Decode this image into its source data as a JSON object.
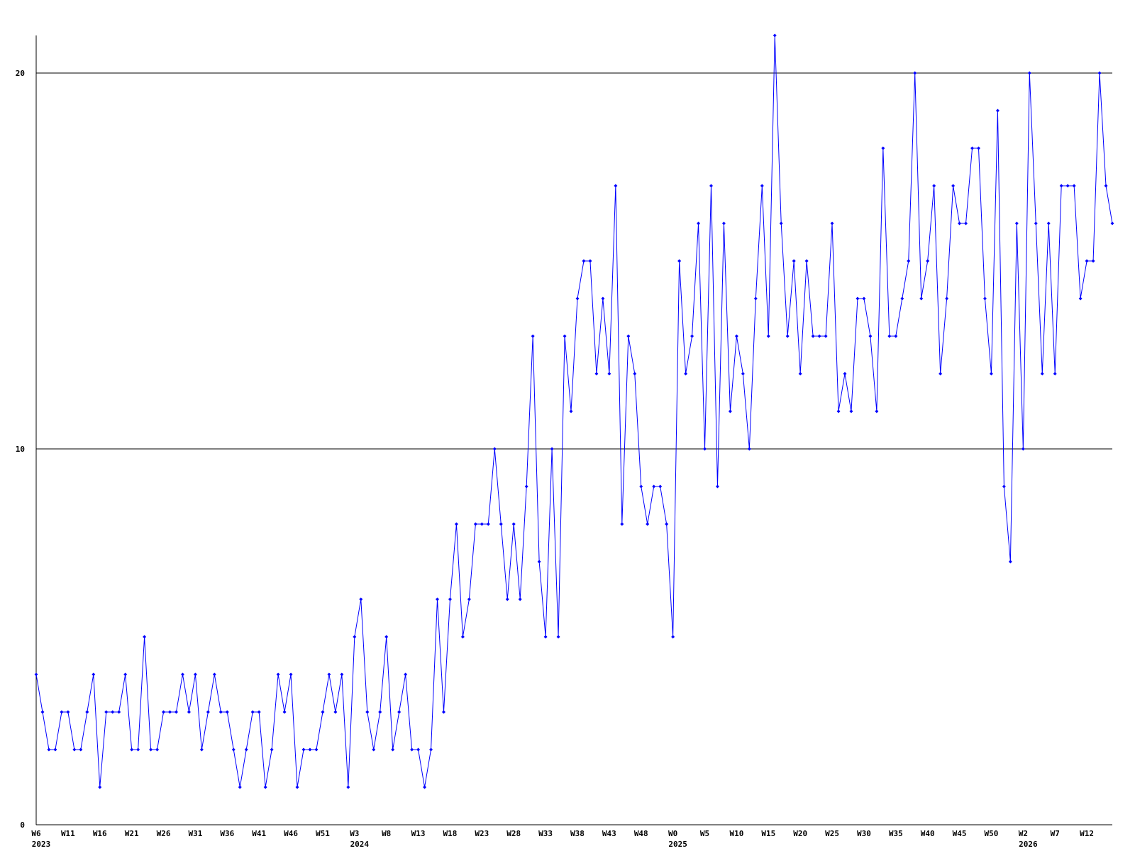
{
  "chart_data": {
    "type": "line",
    "categories": [
      "W6",
      null,
      null,
      null,
      null,
      "W11",
      null,
      null,
      null,
      null,
      "W16",
      null,
      null,
      null,
      null,
      "W21",
      null,
      null,
      null,
      null,
      "W26",
      null,
      null,
      null,
      null,
      "W31",
      null,
      null,
      null,
      null,
      "W36",
      null,
      null,
      null,
      null,
      "W41",
      null,
      null,
      null,
      null,
      "W46",
      null,
      null,
      null,
      null,
      "W51",
      null,
      null,
      null,
      null,
      "W3",
      null,
      null,
      null,
      null,
      "W8",
      null,
      null,
      null,
      null,
      "W13",
      null,
      null,
      null,
      null,
      "W18",
      null,
      null,
      null,
      null,
      "W23",
      null,
      null,
      null,
      null,
      "W28",
      null,
      null,
      null,
      null,
      "W33",
      null,
      null,
      null,
      null,
      "W38",
      null,
      null,
      null,
      null,
      "W43",
      null,
      null,
      null,
      null,
      "W48",
      null,
      null,
      null,
      null,
      "W0",
      null,
      null,
      null,
      null,
      "W5",
      null,
      null,
      null,
      null,
      "W10",
      null,
      null,
      null,
      null,
      "W15",
      null,
      null,
      null,
      null,
      "W20",
      null,
      null,
      null,
      null,
      "W25",
      null,
      null,
      null,
      null,
      "W30",
      null,
      null,
      null,
      null,
      "W35",
      null,
      null,
      null,
      null,
      "W40",
      null,
      null,
      null,
      null,
      "W45",
      null,
      null,
      null,
      null,
      "W50",
      null,
      null,
      null,
      null,
      "W2",
      null,
      null,
      null,
      null,
      "W7",
      null,
      null,
      null,
      null,
      "W12",
      null,
      null,
      null,
      null
    ],
    "years": [
      "2023",
      null,
      null,
      null,
      null,
      null,
      null,
      null,
      null,
      null,
      null,
      null,
      null,
      null,
      null,
      null,
      null,
      null,
      null,
      null,
      null,
      null,
      null,
      null,
      null,
      null,
      null,
      null,
      null,
      null,
      null,
      null,
      null,
      null,
      null,
      null,
      null,
      null,
      null,
      null,
      null,
      null,
      null,
      null,
      null,
      null,
      null,
      null,
      null,
      null,
      "2024",
      null,
      null,
      null,
      null,
      null,
      null,
      null,
      null,
      null,
      null,
      null,
      null,
      null,
      null,
      null,
      null,
      null,
      null,
      null,
      null,
      null,
      null,
      null,
      null,
      null,
      null,
      null,
      null,
      null,
      null,
      null,
      null,
      null,
      null,
      null,
      null,
      null,
      null,
      null,
      null,
      null,
      null,
      null,
      null,
      null,
      null,
      null,
      null,
      null,
      "2025",
      null,
      null,
      null,
      null,
      null,
      null,
      null,
      null,
      null,
      null,
      null,
      null,
      null,
      null,
      null,
      null,
      null,
      null,
      null,
      null,
      null,
      null,
      null,
      null,
      null,
      null,
      null,
      null,
      null,
      null,
      null,
      null,
      null,
      null,
      null,
      null,
      null,
      null,
      null,
      null,
      null,
      null,
      null,
      null,
      null,
      null,
      null,
      null,
      null,
      null,
      null,
      null,
      null,
      null,
      "2026",
      null,
      null,
      null,
      null,
      null,
      null,
      null,
      null,
      null,
      null,
      null,
      null,
      null,
      null
    ],
    "series": [
      {
        "color": "#0000ff",
        "values": [
          4,
          3,
          2,
          2,
          3,
          3,
          2,
          2,
          3,
          4,
          1,
          3,
          3,
          3,
          4,
          2,
          2,
          5,
          2,
          2,
          3,
          3,
          3,
          4,
          3,
          4,
          2,
          3,
          4,
          3,
          3,
          2,
          1,
          2,
          3,
          3,
          1,
          2,
          4,
          3,
          4,
          1,
          2,
          2,
          2,
          3,
          4,
          3,
          4,
          1,
          5,
          6,
          3,
          2,
          3,
          5,
          2,
          3,
          4,
          2,
          2,
          1,
          2,
          6,
          3,
          6,
          8,
          5,
          6,
          8,
          8,
          8,
          10,
          8,
          6,
          8,
          6,
          9,
          13,
          7,
          5,
          10,
          5,
          13,
          11,
          14,
          15,
          15,
          12,
          14,
          12,
          17,
          8,
          13,
          12,
          9,
          8,
          9,
          9,
          8,
          5,
          15,
          12,
          13,
          16,
          10,
          17,
          9,
          16,
          11,
          13,
          12,
          10,
          14,
          17,
          13,
          21,
          16,
          13,
          15,
          12,
          15,
          13,
          13,
          13,
          16,
          11,
          12,
          11,
          14,
          14,
          13,
          11,
          18,
          13,
          13,
          14,
          15,
          20,
          14,
          15,
          17,
          12,
          14,
          17,
          16,
          16,
          18,
          18,
          14,
          12,
          19,
          9,
          7,
          16,
          10,
          20,
          16,
          12,
          16,
          12,
          17,
          17,
          17,
          14,
          15,
          15,
          20,
          17,
          16
        ]
      }
    ],
    "ylim": [
      0,
      21
    ],
    "yticks": [
      0,
      10,
      20
    ],
    "grid": true
  }
}
